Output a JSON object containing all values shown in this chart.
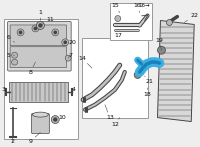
{
  "bg_color": "#eeeeee",
  "line_color": "#444444",
  "highlight_color": "#3ab0e0",
  "highlight_dark": "#1a80bb",
  "gray_part": "#aaaaaa",
  "light_gray": "#cccccc",
  "white": "#ffffff",
  "box_edge": "#999999"
}
